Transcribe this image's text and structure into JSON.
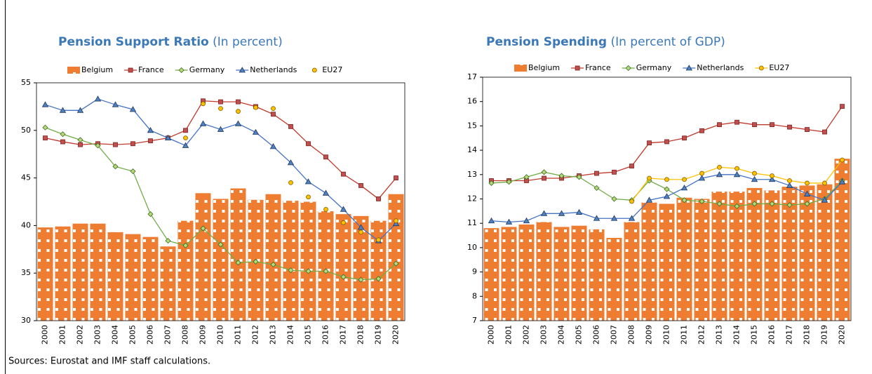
{
  "chart_data": [
    {
      "type": "bar_line",
      "title": "Pension Support Ratio",
      "subtitle": "(In percent)",
      "categories": [
        "2000",
        "2001",
        "2002",
        "2003",
        "2004",
        "2005",
        "2006",
        "2007",
        "2008",
        "2009",
        "2010",
        "2011",
        "2012",
        "2013",
        "2014",
        "2015",
        "2016",
        "2017",
        "2018",
        "2019",
        "2020"
      ],
      "ylim": [
        30,
        55
      ],
      "yticks": [
        30,
        35,
        40,
        45,
        50,
        55
      ],
      "series": [
        {
          "name": "Belgium",
          "kind": "bar",
          "color": "#ee7d31",
          "values": [
            39.8,
            39.9,
            40.2,
            40.2,
            39.3,
            39.1,
            38.8,
            37.8,
            40.5,
            43.4,
            42.8,
            43.9,
            42.7,
            43.3,
            42.6,
            42.5,
            41.5,
            41.2,
            41.0,
            40.5,
            43.3
          ]
        },
        {
          "name": "France",
          "kind": "line",
          "marker": "square",
          "color": "#c0392b",
          "values": [
            49.2,
            48.8,
            48.5,
            48.6,
            48.5,
            48.6,
            48.9,
            49.2,
            50.0,
            53.1,
            53.0,
            53.0,
            52.5,
            51.7,
            50.4,
            48.6,
            47.2,
            45.4,
            44.2,
            42.8,
            45.0
          ]
        },
        {
          "name": "Germany",
          "kind": "line",
          "marker": "diamond",
          "color": "#70ad47",
          "values": [
            50.3,
            49.6,
            49.0,
            48.4,
            46.2,
            45.7,
            41.2,
            38.4,
            37.9,
            39.7,
            38.0,
            36.1,
            36.2,
            35.9,
            35.3,
            35.2,
            35.2,
            34.6,
            34.3,
            34.4,
            36.0
          ]
        },
        {
          "name": "Netherlands",
          "kind": "line",
          "marker": "triangle",
          "color": "#4472c4",
          "values": [
            52.7,
            52.1,
            52.1,
            53.3,
            52.7,
            52.2,
            50.0,
            49.2,
            48.4,
            50.7,
            50.1,
            50.7,
            49.8,
            48.3,
            46.6,
            44.6,
            43.4,
            41.7,
            39.8,
            38.4,
            40.2
          ]
        },
        {
          "name": "EU27",
          "kind": "markers",
          "marker": "circle",
          "color": "#ffc000",
          "values": [
            null,
            null,
            null,
            null,
            null,
            null,
            null,
            null,
            49.2,
            52.8,
            52.3,
            52.0,
            52.4,
            52.3,
            44.5,
            43.0,
            41.7,
            40.3,
            39.3,
            38.5,
            40.5
          ]
        }
      ]
    },
    {
      "type": "bar_line",
      "title": "Pension Spending",
      "subtitle": "(In percent of GDP)",
      "categories": [
        "2000",
        "2001",
        "2002",
        "2003",
        "2004",
        "2005",
        "2006",
        "2007",
        "2008",
        "2009",
        "2010",
        "2011",
        "2012",
        "2013",
        "2014",
        "2015",
        "2016",
        "2017",
        "2018",
        "2019",
        "2020"
      ],
      "ylim": [
        7,
        17
      ],
      "yticks": [
        7,
        8,
        9,
        10,
        11,
        12,
        13,
        14,
        15,
        16,
        17
      ],
      "series": [
        {
          "name": "Belgium",
          "kind": "bar",
          "color": "#ee7d31",
          "values": [
            10.8,
            10.85,
            10.95,
            11.05,
            10.85,
            10.9,
            10.75,
            10.4,
            11.05,
            11.85,
            11.8,
            12.05,
            12.0,
            12.3,
            12.3,
            12.45,
            12.35,
            12.5,
            12.55,
            12.6,
            13.65
          ]
        },
        {
          "name": "France",
          "kind": "line",
          "marker": "square",
          "color": "#c0392b",
          "values": [
            12.75,
            12.75,
            12.75,
            12.85,
            12.85,
            12.95,
            13.05,
            13.1,
            13.35,
            14.3,
            14.35,
            14.5,
            14.8,
            15.05,
            15.15,
            15.05,
            15.05,
            14.95,
            14.85,
            14.75,
            15.8
          ]
        },
        {
          "name": "Germany",
          "kind": "line",
          "marker": "diamond",
          "color": "#70ad47",
          "values": [
            12.65,
            12.7,
            12.9,
            13.1,
            12.95,
            12.9,
            12.45,
            12.0,
            11.95,
            12.75,
            12.4,
            11.95,
            11.9,
            11.8,
            11.7,
            11.8,
            11.8,
            11.75,
            11.8,
            12.0,
            12.75
          ]
        },
        {
          "name": "Netherlands",
          "kind": "line",
          "marker": "triangle",
          "color": "#4472c4",
          "values": [
            11.1,
            11.05,
            11.1,
            11.4,
            11.4,
            11.45,
            11.2,
            11.2,
            11.2,
            11.95,
            12.1,
            12.45,
            12.85,
            13.0,
            13.0,
            12.8,
            12.8,
            12.55,
            12.2,
            11.95,
            12.7
          ]
        },
        {
          "name": "EU27",
          "kind": "line",
          "marker": "circle",
          "color": "#ffc000",
          "values": [
            null,
            null,
            null,
            null,
            null,
            null,
            null,
            null,
            11.9,
            12.85,
            12.8,
            12.8,
            13.05,
            13.3,
            13.25,
            13.05,
            12.95,
            12.75,
            12.65,
            12.65,
            13.6
          ]
        }
      ]
    }
  ],
  "note": "Sources: Eurostat and IMF staff calculations."
}
